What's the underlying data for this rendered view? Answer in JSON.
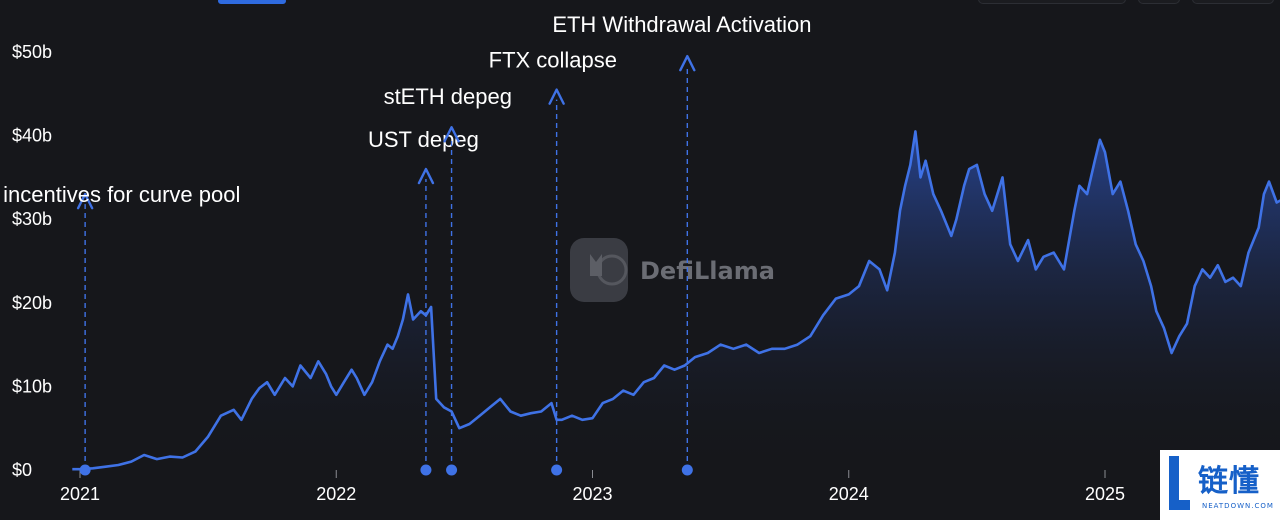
{
  "chart_data": {
    "type": "area",
    "watermark": "DefiLlama",
    "y_ticks": [
      "$0",
      "$10b",
      "$20b",
      "$30b",
      "$40b",
      "$50b"
    ],
    "y_tick_values": [
      0,
      10,
      20,
      30,
      40,
      50
    ],
    "x_ticks": [
      "2021",
      "2022",
      "2023",
      "2024",
      "2025"
    ],
    "x_tick_values": [
      2021,
      2022,
      2023,
      2024,
      2025
    ],
    "ylim": [
      0,
      50
    ],
    "xlim": [
      2020.95,
      2025.73
    ],
    "grid": false,
    "colors": {
      "line": "#3f72e6",
      "fill_top": "#2a4aa0",
      "fill_bottom": "#16171b",
      "annotation": "#3f72e6"
    },
    "series": [
      {
        "x": [
          2020.97,
          2021.0,
          2021.05,
          2021.1,
          2021.15,
          2021.2,
          2021.25,
          2021.3,
          2021.35,
          2021.4,
          2021.45,
          2021.5,
          2021.55,
          2021.6,
          2021.63,
          2021.67,
          2021.7,
          2021.73,
          2021.76,
          2021.8,
          2021.83,
          2021.86,
          2021.9,
          2021.93,
          2021.96,
          2021.98,
          2022.0,
          2022.03,
          2022.06,
          2022.08,
          2022.11,
          2022.14,
          2022.17,
          2022.2,
          2022.22,
          2022.24,
          2022.26,
          2022.28,
          2022.3,
          2022.33,
          2022.35,
          2022.37,
          2022.39,
          2022.42,
          2022.45,
          2022.48,
          2022.52,
          2022.56,
          2022.6,
          2022.64,
          2022.68,
          2022.72,
          2022.76,
          2022.8,
          2022.84,
          2022.86,
          2022.88,
          2022.92,
          2022.96,
          2023.0,
          2023.04,
          2023.08,
          2023.12,
          2023.16,
          2023.2,
          2023.24,
          2023.28,
          2023.32,
          2023.36,
          2023.4,
          2023.45,
          2023.5,
          2023.55,
          2023.6,
          2023.65,
          2023.7,
          2023.75,
          2023.8,
          2023.85,
          2023.9,
          2023.95,
          2024.0,
          2024.04,
          2024.08,
          2024.12,
          2024.15,
          2024.18,
          2024.2,
          2024.22,
          2024.24,
          2024.26,
          2024.28,
          2024.3,
          2024.33,
          2024.36,
          2024.4,
          2024.42,
          2024.45,
          2024.47,
          2024.5,
          2024.53,
          2024.56,
          2024.6,
          2024.63,
          2024.66,
          2024.7,
          2024.73,
          2024.76,
          2024.8,
          2024.84,
          2024.88,
          2024.9,
          2024.93,
          2024.96,
          2024.98,
          2025.0,
          2025.03,
          2025.06,
          2025.09,
          2025.12,
          2025.15,
          2025.18,
          2025.2,
          2025.23,
          2025.26,
          2025.29,
          2025.32,
          2025.35,
          2025.38,
          2025.41,
          2025.44,
          2025.47,
          2025.5,
          2025.53,
          2025.56,
          2025.6,
          2025.62,
          2025.64,
          2025.67,
          2025.7
        ],
        "values": [
          0.1,
          0.1,
          0.2,
          0.4,
          0.6,
          1.0,
          1.8,
          1.3,
          1.6,
          1.5,
          2.2,
          4.0,
          6.5,
          7.2,
          6.0,
          8.5,
          9.8,
          10.5,
          9.0,
          11.0,
          10.0,
          12.5,
          11.0,
          13.0,
          11.5,
          10.0,
          9.0,
          10.5,
          12.0,
          11.0,
          9.0,
          10.5,
          13.0,
          15.0,
          14.5,
          16.0,
          18.0,
          21.0,
          18.0,
          19.0,
          18.5,
          19.5,
          8.5,
          7.5,
          7.0,
          5.0,
          5.5,
          6.5,
          7.5,
          8.5,
          7.0,
          6.5,
          6.8,
          7.0,
          8.0,
          6.0,
          6.0,
          6.5,
          6.0,
          6.2,
          8.0,
          8.5,
          9.5,
          9.0,
          10.5,
          11.0,
          12.5,
          12.0,
          12.5,
          13.5,
          14.0,
          15.0,
          14.5,
          15.0,
          14.0,
          14.5,
          14.5,
          15.0,
          16.0,
          18.5,
          20.5,
          21.0,
          22.0,
          25.0,
          24.0,
          21.5,
          26.0,
          31.0,
          34.0,
          36.5,
          40.5,
          35.0,
          37.0,
          33.0,
          31.0,
          28.0,
          30.0,
          34.0,
          36.0,
          36.5,
          33.0,
          31.0,
          35.0,
          27.0,
          25.0,
          27.5,
          24.0,
          25.5,
          26.0,
          24.0,
          31.0,
          34.0,
          33.0,
          37.0,
          39.5,
          38.0,
          33.0,
          34.5,
          31.0,
          27.0,
          25.0,
          22.0,
          19.0,
          17.0,
          14.0,
          16.0,
          17.5,
          22.0,
          24.0,
          23.0,
          24.5,
          22.5,
          23.0,
          22.0,
          26.0,
          29.0,
          33.0,
          34.5,
          32.0,
          32.5
        ]
      }
    ],
    "annotations": [
      {
        "label": "incentives for curve pool",
        "x": 2021.02,
        "peak": 33.0
      },
      {
        "label": "UST depeg",
        "x": 2022.35,
        "peak": 36.0
      },
      {
        "label": "stETH depeg",
        "x": 2022.45,
        "peak": 41.0
      },
      {
        "label": "FTX collapse",
        "x": 2022.86,
        "peak": 45.5
      },
      {
        "label": "ETH Withdrawal Activation",
        "x": 2023.37,
        "peak": 49.5
      }
    ]
  },
  "brand": {
    "name_cn": "链懂",
    "name_en": "NEATDOWN.COM"
  }
}
